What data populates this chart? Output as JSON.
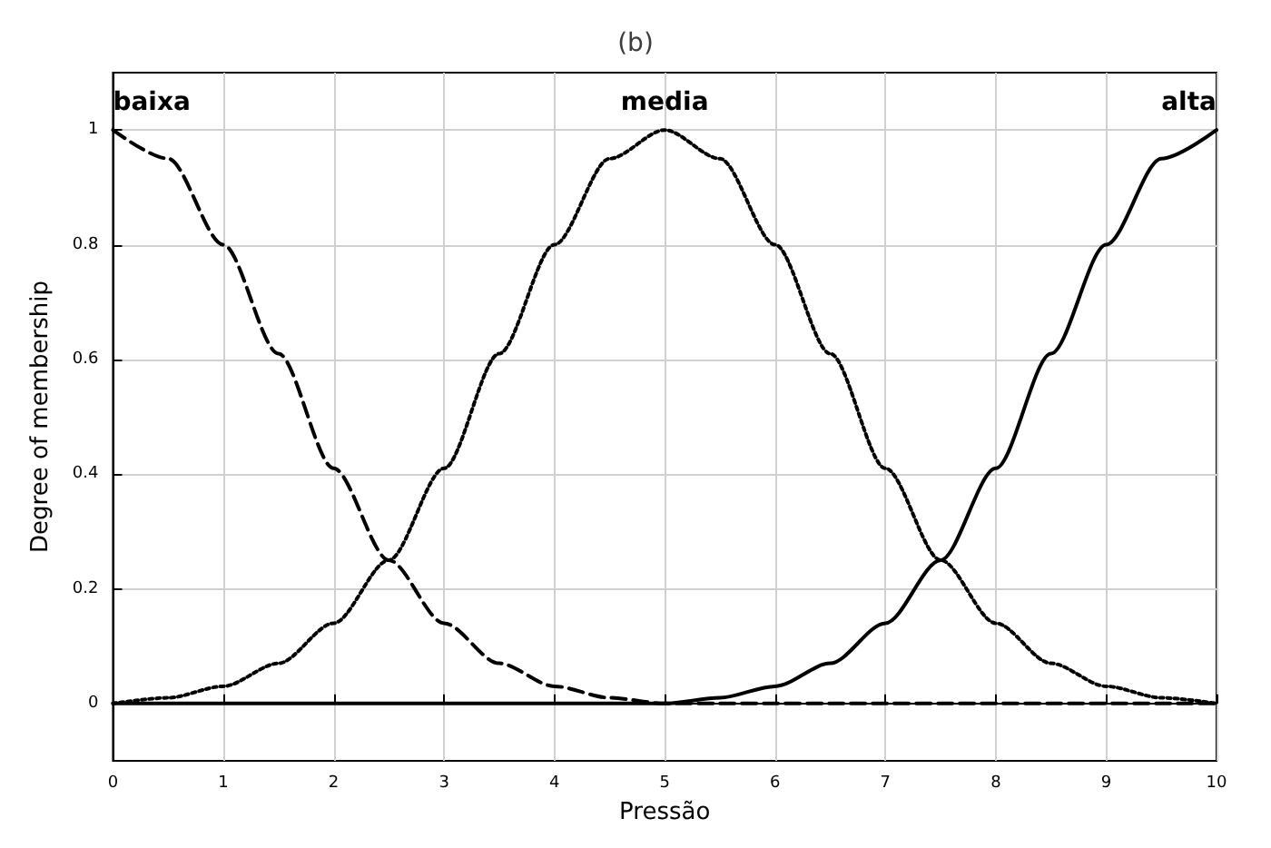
{
  "chart_data": {
    "type": "line",
    "title": "(b)",
    "xlabel": "Pressão",
    "ylabel": "Degree of membership",
    "x": [
      0,
      0.5,
      1,
      1.5,
      2,
      2.5,
      3,
      3.5,
      4,
      4.5,
      5,
      5.5,
      6,
      6.5,
      7,
      7.5,
      8,
      8.5,
      9,
      9.5,
      10
    ],
    "series": [
      {
        "name": "baixa",
        "color": "#000000",
        "line_style": "dashed",
        "values": [
          1,
          0.95,
          0.8,
          0.61,
          0.41,
          0.25,
          0.14,
          0.07,
          0.03,
          0.01,
          0,
          0,
          0,
          0,
          0,
          0,
          0,
          0,
          0,
          0,
          0
        ]
      },
      {
        "name": "media",
        "color": "#000000",
        "line_style": "dotted",
        "values": [
          0,
          0.01,
          0.03,
          0.07,
          0.14,
          0.25,
          0.41,
          0.61,
          0.8,
          0.95,
          1,
          0.95,
          0.8,
          0.61,
          0.41,
          0.25,
          0.14,
          0.07,
          0.03,
          0.01,
          0
        ]
      },
      {
        "name": "alta",
        "color": "#000000",
        "line_style": "solid",
        "values": [
          0,
          0,
          0,
          0,
          0,
          0,
          0,
          0,
          0,
          0,
          0,
          0.01,
          0.03,
          0.07,
          0.14,
          0.25,
          0.41,
          0.61,
          0.8,
          0.95,
          1
        ]
      }
    ],
    "xlim": [
      0,
      10
    ],
    "xticks": [
      0,
      1,
      2,
      3,
      4,
      5,
      6,
      7,
      8,
      9,
      10
    ],
    "ylim": [
      -0.1,
      1.1
    ],
    "yticks": [
      0,
      0.2,
      0.4,
      0.6,
      0.8,
      1
    ],
    "grid": true,
    "legend": false,
    "marker": "none"
  }
}
